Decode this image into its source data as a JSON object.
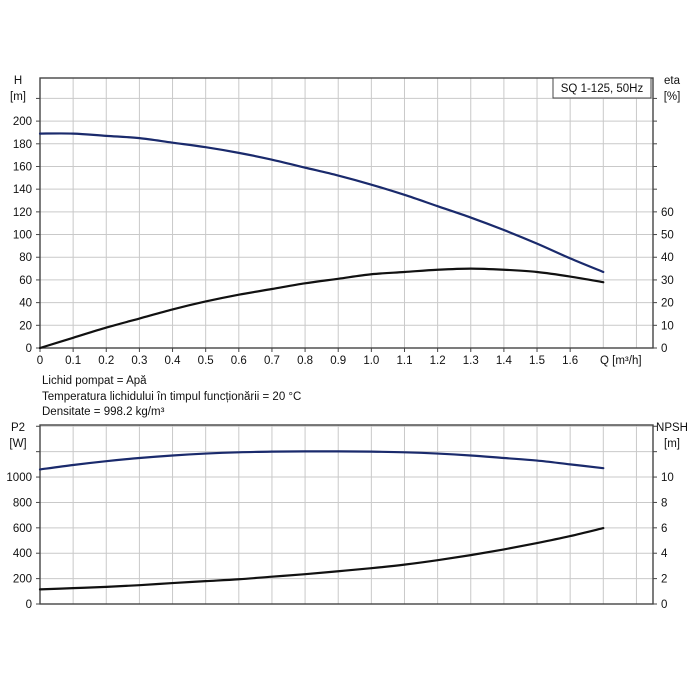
{
  "chart_data": [
    {
      "type": "line",
      "legend_box": "SQ 1-125, 50Hz",
      "xlabel": "Q [m³/h]",
      "ylabel_left": [
        "H",
        "[m]"
      ],
      "ylabel_right": [
        "eta",
        "[%]"
      ],
      "x_ticks": [
        "0",
        "0.1",
        "0.2",
        "0.3",
        "0.4",
        "0.5",
        "0.6",
        "0.7",
        "0.8",
        "0.9",
        "1.0",
        "1.1",
        "1.2",
        "1.3",
        "1.4",
        "1.5",
        "1.6"
      ],
      "y_left_ticks": [
        0,
        20,
        40,
        60,
        80,
        100,
        120,
        140,
        160,
        180,
        200
      ],
      "y_right_ticks": [
        0,
        10,
        20,
        30,
        40,
        50,
        60
      ],
      "xlim": [
        0,
        1.85
      ],
      "ylim_left": [
        0,
        238
      ],
      "ylim_right": [
        0,
        119
      ],
      "grid": true,
      "x": [
        0,
        0.1,
        0.2,
        0.3,
        0.4,
        0.5,
        0.6,
        0.7,
        0.8,
        0.9,
        1.0,
        1.1,
        1.2,
        1.3,
        1.4,
        1.5,
        1.6,
        1.7
      ],
      "series": [
        {
          "axis": "left",
          "color": "#1a2a6c",
          "values": [
            189,
            189,
            187,
            185,
            181,
            177,
            172,
            166,
            159,
            152,
            144,
            135,
            125,
            115,
            104,
            92,
            79,
            67
          ]
        },
        {
          "axis": "right",
          "color": "#111111",
          "values": [
            0,
            4.5,
            9,
            13,
            17,
            20.5,
            23.5,
            26,
            28.5,
            30.5,
            32.5,
            33.5,
            34.5,
            35,
            34.5,
            33.5,
            31.5,
            29
          ]
        }
      ]
    },
    {
      "type": "line",
      "ylabel_left": [
        "P2",
        "[W]"
      ],
      "ylabel_right": [
        "NPSH",
        "[m]"
      ],
      "y_left_ticks": [
        0,
        200,
        400,
        600,
        800,
        1000
      ],
      "y_right_ticks": [
        0,
        2,
        4,
        6,
        8,
        10
      ],
      "xlim": [
        0,
        1.85
      ],
      "ylim_left": [
        0,
        1410
      ],
      "ylim_right": [
        0,
        14.1
      ],
      "grid": true,
      "x": [
        0,
        0.1,
        0.2,
        0.3,
        0.4,
        0.5,
        0.6,
        0.7,
        0.8,
        0.9,
        1.0,
        1.1,
        1.2,
        1.3,
        1.4,
        1.5,
        1.6,
        1.7
      ],
      "series": [
        {
          "axis": "left",
          "color": "#111111",
          "values": [
            115,
            125,
            135,
            148,
            165,
            180,
            195,
            215,
            235,
            258,
            282,
            310,
            345,
            385,
            430,
            480,
            535,
            598
          ]
        },
        {
          "axis": "right",
          "color": "#1a2a6c",
          "values": [
            10.6,
            10.95,
            11.25,
            11.5,
            11.7,
            11.85,
            11.95,
            12.0,
            12.02,
            12.02,
            12.0,
            11.95,
            11.85,
            11.7,
            11.5,
            11.3,
            11.0,
            10.7
          ]
        }
      ]
    }
  ],
  "notes": [
    "Lichid pompat = Apă",
    "Temperatura lichidului în timpul funcționării = 20 °C",
    "Densitate = 998.2 kg/m³"
  ]
}
